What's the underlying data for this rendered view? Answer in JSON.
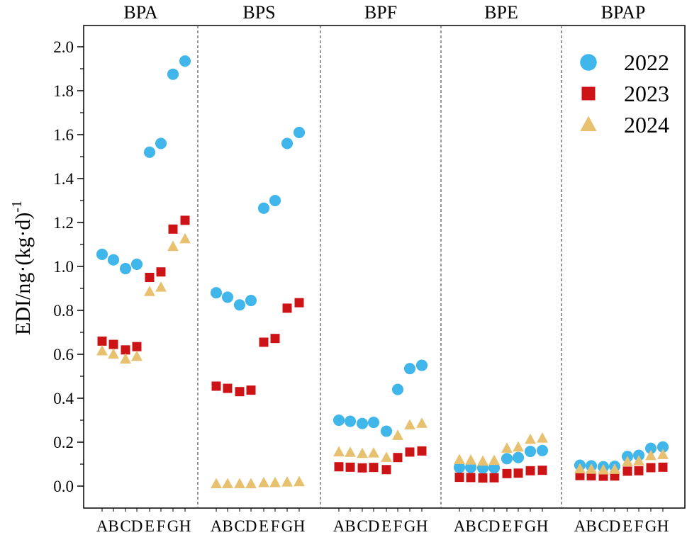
{
  "chart_data": {
    "type": "scatter",
    "panels": [
      "BPA",
      "BPS",
      "BPF",
      "BPE",
      "BPAP"
    ],
    "categories": [
      "A",
      "B",
      "C",
      "D",
      "E",
      "F",
      "G",
      "H"
    ],
    "ylabel": "EDI/ng·(kg·d)",
    "ylabel_superscript": "-1",
    "ylim": [
      0,
      2.0
    ],
    "yticks": [
      "0.0",
      "0.2",
      "0.4",
      "0.6",
      "0.8",
      "1.0",
      "1.2",
      "1.4",
      "1.6",
      "1.8",
      "2.0"
    ],
    "legend_position": "top-right",
    "series": [
      {
        "name": "2022",
        "marker": "circle",
        "color": "#41b6ea",
        "values": [
          [
            1.055,
            1.03,
            0.99,
            1.01,
            1.52,
            1.56,
            1.875,
            1.935
          ],
          [
            0.88,
            0.86,
            0.825,
            0.845,
            1.265,
            1.3,
            1.56,
            1.61
          ],
          [
            0.3,
            0.295,
            0.285,
            0.29,
            0.25,
            0.44,
            0.535,
            0.55
          ],
          [
            0.085,
            0.085,
            0.082,
            0.083,
            0.125,
            0.13,
            0.158,
            0.162
          ],
          [
            0.095,
            0.092,
            0.088,
            0.09,
            0.135,
            0.14,
            0.172,
            0.178
          ]
        ]
      },
      {
        "name": "2023",
        "marker": "square",
        "color": "#cc1417",
        "values": [
          [
            0.66,
            0.645,
            0.62,
            0.635,
            0.95,
            0.975,
            1.17,
            1.21
          ],
          [
            0.455,
            0.445,
            0.43,
            0.437,
            0.655,
            0.672,
            0.81,
            0.835
          ],
          [
            0.088,
            0.086,
            0.083,
            0.085,
            0.075,
            0.13,
            0.155,
            0.16
          ],
          [
            0.04,
            0.039,
            0.037,
            0.038,
            0.057,
            0.059,
            0.07,
            0.072
          ],
          [
            0.048,
            0.047,
            0.045,
            0.046,
            0.068,
            0.07,
            0.084,
            0.086
          ]
        ]
      },
      {
        "name": "2024",
        "marker": "triangle",
        "color": "#e8c170",
        "values": [
          [
            0.615,
            0.6,
            0.578,
            0.59,
            0.885,
            0.905,
            1.09,
            1.125
          ],
          [
            0.01,
            0.01,
            0.01,
            0.01,
            0.015,
            0.015,
            0.018,
            0.019
          ],
          [
            0.155,
            0.153,
            0.148,
            0.15,
            0.13,
            0.23,
            0.278,
            0.285
          ],
          [
            0.12,
            0.118,
            0.113,
            0.116,
            0.172,
            0.177,
            0.212,
            0.218
          ],
          [
            0.078,
            0.076,
            0.073,
            0.075,
            0.11,
            0.114,
            0.138,
            0.143
          ]
        ]
      }
    ]
  }
}
